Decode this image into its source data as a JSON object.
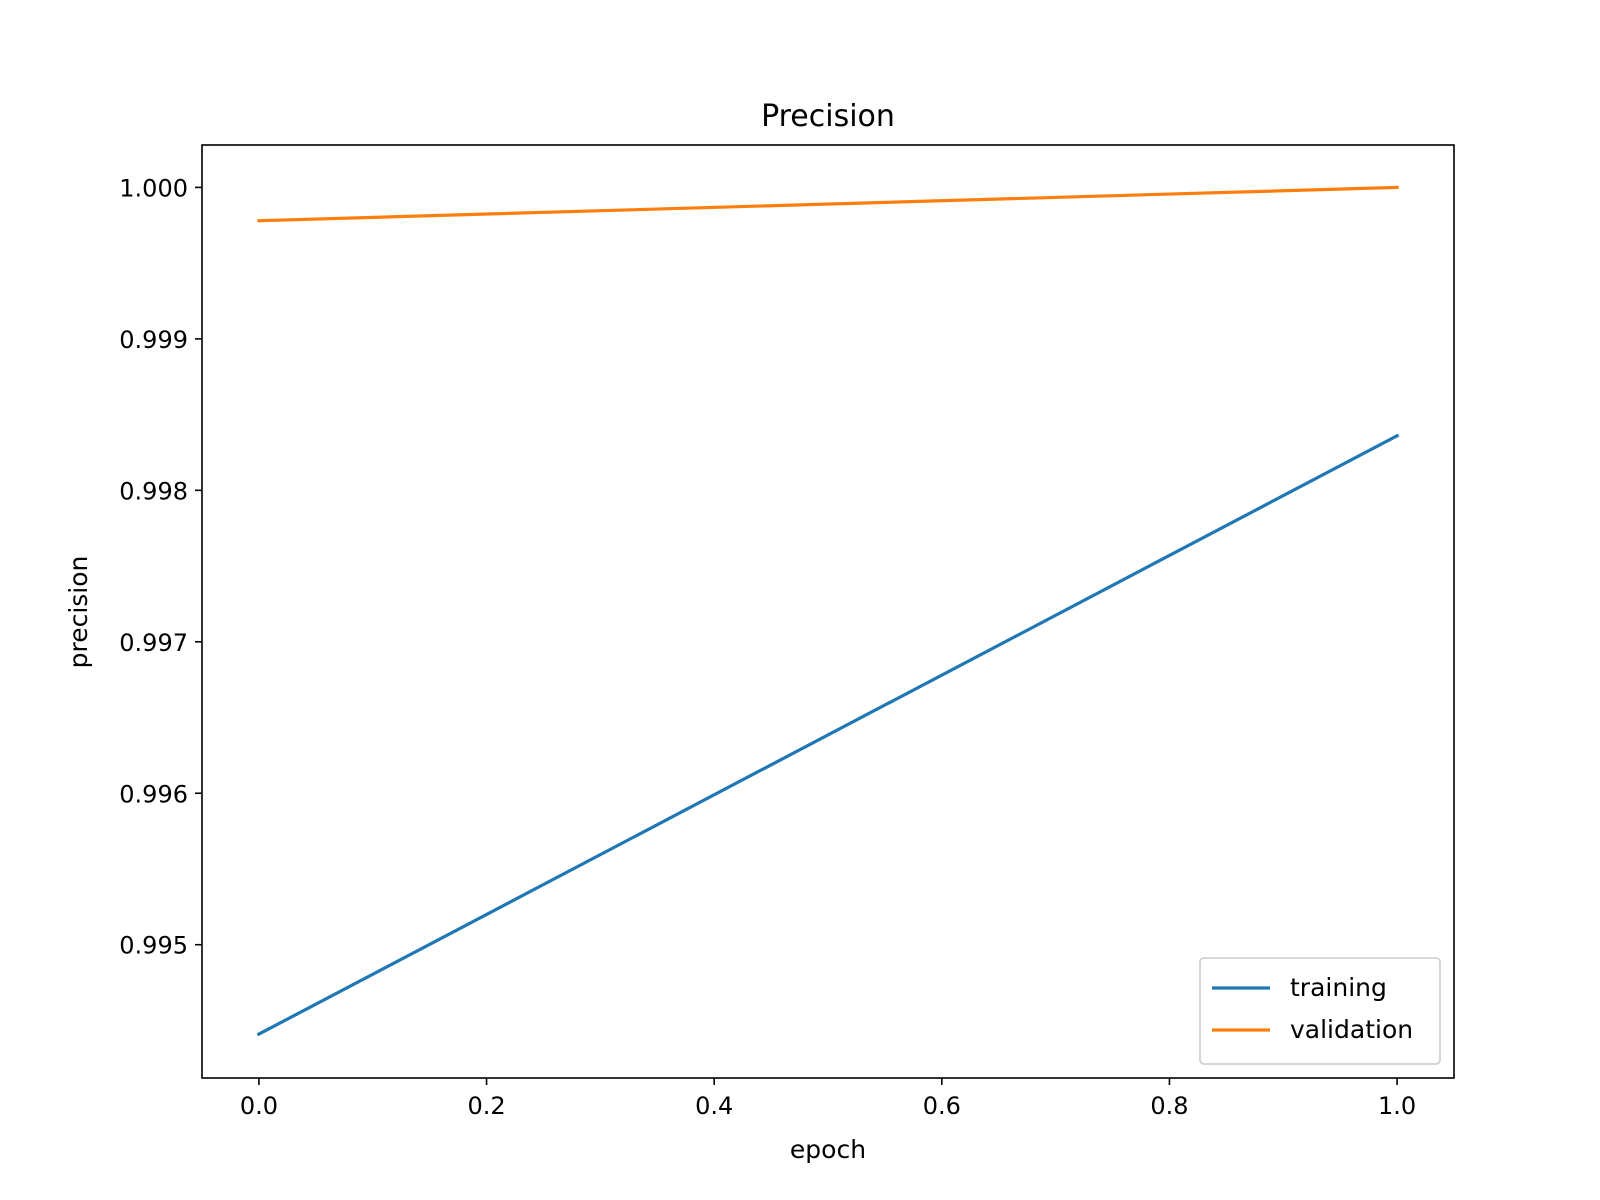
{
  "chart_data": {
    "type": "line",
    "title": "Precision",
    "xlabel": "epoch",
    "ylabel": "precision",
    "x": [
      0.0,
      1.0
    ],
    "series": [
      {
        "name": "training",
        "values": [
          0.99441,
          0.99836
        ],
        "color": "#1f77b4"
      },
      {
        "name": "validation",
        "values": [
          0.99978,
          1.0
        ],
        "color": "#ff7f0e"
      }
    ],
    "xlim": [
      -0.05,
      1.05
    ],
    "ylim": [
      0.99412,
      1.00028
    ],
    "xticks": [
      {
        "value": 0.0,
        "label": "0.0"
      },
      {
        "value": 0.2,
        "label": "0.2"
      },
      {
        "value": 0.4,
        "label": "0.4"
      },
      {
        "value": 0.6,
        "label": "0.6"
      },
      {
        "value": 0.8,
        "label": "0.8"
      },
      {
        "value": 1.0,
        "label": "1.0"
      }
    ],
    "yticks": [
      {
        "value": 0.995,
        "label": "0.995"
      },
      {
        "value": 0.996,
        "label": "0.996"
      },
      {
        "value": 0.997,
        "label": "0.997"
      },
      {
        "value": 0.998,
        "label": "0.998"
      },
      {
        "value": 0.999,
        "label": "0.999"
      },
      {
        "value": 1.0,
        "label": "1.000"
      }
    ],
    "grid": false,
    "legend_position": "lower-right"
  }
}
